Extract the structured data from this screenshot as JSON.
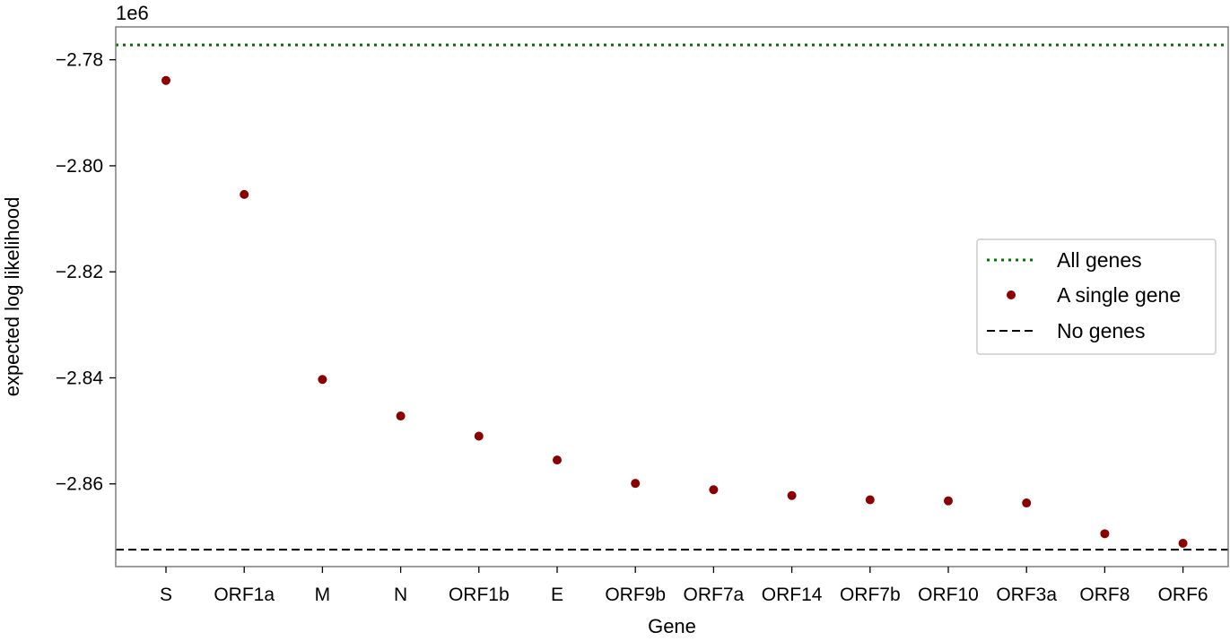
{
  "chart_data": {
    "type": "scatter",
    "title": "",
    "xlabel": "Gene",
    "ylabel": "expected log likelihood",
    "y_scale_label": "1e6",
    "categories": [
      "S",
      "ORF1a",
      "M",
      "N",
      "ORF1b",
      "E",
      "ORF9b",
      "ORF7a",
      "ORF14",
      "ORF7b",
      "ORF10",
      "ORF3a",
      "ORF8",
      "ORF6"
    ],
    "y_ticks": [
      -2.78,
      -2.8,
      -2.82,
      -2.84,
      -2.86
    ],
    "y_tick_labels": [
      "−2.78",
      "−2.80",
      "−2.82",
      "−2.84",
      "−2.86"
    ],
    "ylim": [
      -2.8756,
      -2.7738
    ],
    "grid": false,
    "legend_position": "center-right",
    "series": [
      {
        "name": "A single gene",
        "kind": "points",
        "color": "#8b0000",
        "values": [
          -2.7839,
          -2.8054,
          -2.8403,
          -2.8472,
          -2.851,
          -2.8555,
          -2.8599,
          -2.8611,
          -2.8622,
          -2.863,
          -2.8632,
          -2.8636,
          -2.8694,
          -2.8712
        ]
      },
      {
        "name": "All genes",
        "kind": "hline",
        "style": "dotted",
        "color": "#007400",
        "value": -2.7772
      },
      {
        "name": "No genes",
        "kind": "hline",
        "style": "dashed",
        "color": "#000000",
        "value": -2.8724
      }
    ],
    "legend": [
      "All genes",
      "A single gene",
      "No genes"
    ]
  }
}
